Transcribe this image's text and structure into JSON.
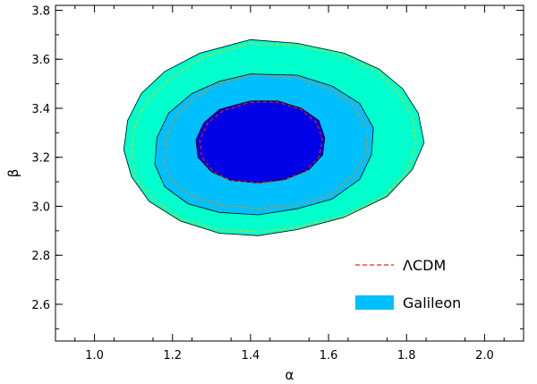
{
  "chart_data": {
    "type": "contour",
    "xlabel": "α",
    "ylabel": "β",
    "xlim": [
      0.9,
      2.1
    ],
    "ylim": [
      2.45,
      3.82
    ],
    "xticks": [
      1.0,
      1.2,
      1.4,
      1.6,
      1.8,
      2.0
    ],
    "xtick_labels": [
      "1.0",
      "1.2",
      "1.4",
      "1.6",
      "1.8",
      "2.0"
    ],
    "yticks": [
      2.6,
      2.8,
      3.0,
      3.2,
      3.4,
      3.6,
      3.8
    ],
    "ytick_labels": [
      "2.6",
      "2.8",
      "3.0",
      "3.2",
      "3.4",
      "3.6",
      "3.8"
    ],
    "grid": false,
    "legend_position": "bottom-right",
    "legend": [
      {
        "label": "ΛCDM",
        "style": "dashed-line",
        "color": "#ff2200"
      },
      {
        "label": "Galileon",
        "style": "filled-box",
        "color": "#00bfff"
      }
    ],
    "galileon_contours": [
      {
        "level": "outer",
        "fill": "#00ffcc",
        "points": [
          [
            1.4,
            3.68
          ],
          [
            1.52,
            3.665
          ],
          [
            1.64,
            3.625
          ],
          [
            1.73,
            3.56
          ],
          [
            1.79,
            3.48
          ],
          [
            1.83,
            3.38
          ],
          [
            1.845,
            3.26
          ],
          [
            1.815,
            3.15
          ],
          [
            1.75,
            3.04
          ],
          [
            1.64,
            2.955
          ],
          [
            1.52,
            2.905
          ],
          [
            1.42,
            2.88
          ],
          [
            1.32,
            2.89
          ],
          [
            1.22,
            2.94
          ],
          [
            1.14,
            3.02
          ],
          [
            1.095,
            3.12
          ],
          [
            1.075,
            3.23
          ],
          [
            1.085,
            3.35
          ],
          [
            1.12,
            3.46
          ],
          [
            1.18,
            3.55
          ],
          [
            1.27,
            3.625
          ]
        ]
      },
      {
        "level": "middle",
        "fill": "#00bfff",
        "points": [
          [
            1.4,
            3.54
          ],
          [
            1.52,
            3.535
          ],
          [
            1.61,
            3.49
          ],
          [
            1.68,
            3.42
          ],
          [
            1.715,
            3.32
          ],
          [
            1.71,
            3.21
          ],
          [
            1.68,
            3.11
          ],
          [
            1.61,
            3.03
          ],
          [
            1.52,
            2.99
          ],
          [
            1.42,
            2.965
          ],
          [
            1.32,
            2.975
          ],
          [
            1.24,
            3.01
          ],
          [
            1.18,
            3.08
          ],
          [
            1.155,
            3.17
          ],
          [
            1.16,
            3.28
          ],
          [
            1.19,
            3.38
          ],
          [
            1.25,
            3.46
          ],
          [
            1.32,
            3.51
          ]
        ]
      },
      {
        "level": "inner",
        "fill": "#0000e6",
        "points": [
          [
            1.4,
            3.43
          ],
          [
            1.47,
            3.43
          ],
          [
            1.53,
            3.4
          ],
          [
            1.575,
            3.35
          ],
          [
            1.59,
            3.28
          ],
          [
            1.585,
            3.21
          ],
          [
            1.55,
            3.15
          ],
          [
            1.49,
            3.11
          ],
          [
            1.42,
            3.095
          ],
          [
            1.35,
            3.105
          ],
          [
            1.3,
            3.14
          ],
          [
            1.265,
            3.2
          ],
          [
            1.26,
            3.27
          ],
          [
            1.28,
            3.34
          ],
          [
            1.32,
            3.395
          ]
        ]
      }
    ],
    "lcdm_contours": [
      {
        "level": "outer",
        "color": "#e8c800",
        "points": [
          [
            1.4,
            3.665
          ],
          [
            1.52,
            3.655
          ],
          [
            1.64,
            3.615
          ],
          [
            1.73,
            3.545
          ],
          [
            1.78,
            3.46
          ],
          [
            1.815,
            3.36
          ],
          [
            1.825,
            3.25
          ],
          [
            1.8,
            3.14
          ],
          [
            1.74,
            3.04
          ],
          [
            1.64,
            2.96
          ],
          [
            1.52,
            2.915
          ],
          [
            1.42,
            2.895
          ],
          [
            1.32,
            2.905
          ],
          [
            1.22,
            2.95
          ],
          [
            1.15,
            3.03
          ],
          [
            1.105,
            3.12
          ],
          [
            1.095,
            3.23
          ],
          [
            1.105,
            3.34
          ],
          [
            1.14,
            3.44
          ],
          [
            1.2,
            3.53
          ],
          [
            1.28,
            3.61
          ]
        ]
      },
      {
        "level": "middle",
        "color": "#e88a00",
        "points": [
          [
            1.4,
            3.535
          ],
          [
            1.52,
            3.525
          ],
          [
            1.6,
            3.48
          ],
          [
            1.665,
            3.41
          ],
          [
            1.7,
            3.31
          ],
          [
            1.695,
            3.21
          ],
          [
            1.66,
            3.12
          ],
          [
            1.6,
            3.045
          ],
          [
            1.52,
            3.005
          ],
          [
            1.42,
            2.99
          ],
          [
            1.32,
            3.005
          ],
          [
            1.25,
            3.04
          ],
          [
            1.2,
            3.1
          ],
          [
            1.18,
            3.18
          ],
          [
            1.185,
            3.28
          ],
          [
            1.21,
            3.37
          ],
          [
            1.26,
            3.445
          ],
          [
            1.32,
            3.5
          ]
        ]
      },
      {
        "level": "inner",
        "color": "#ff2200",
        "points": [
          [
            1.4,
            3.425
          ],
          [
            1.47,
            3.425
          ],
          [
            1.53,
            3.395
          ],
          [
            1.57,
            3.34
          ],
          [
            1.585,
            3.27
          ],
          [
            1.575,
            3.2
          ],
          [
            1.54,
            3.14
          ],
          [
            1.48,
            3.105
          ],
          [
            1.42,
            3.095
          ],
          [
            1.35,
            3.105
          ],
          [
            1.305,
            3.14
          ],
          [
            1.275,
            3.2
          ],
          [
            1.27,
            3.27
          ],
          [
            1.29,
            3.34
          ],
          [
            1.33,
            3.39
          ]
        ]
      }
    ]
  }
}
